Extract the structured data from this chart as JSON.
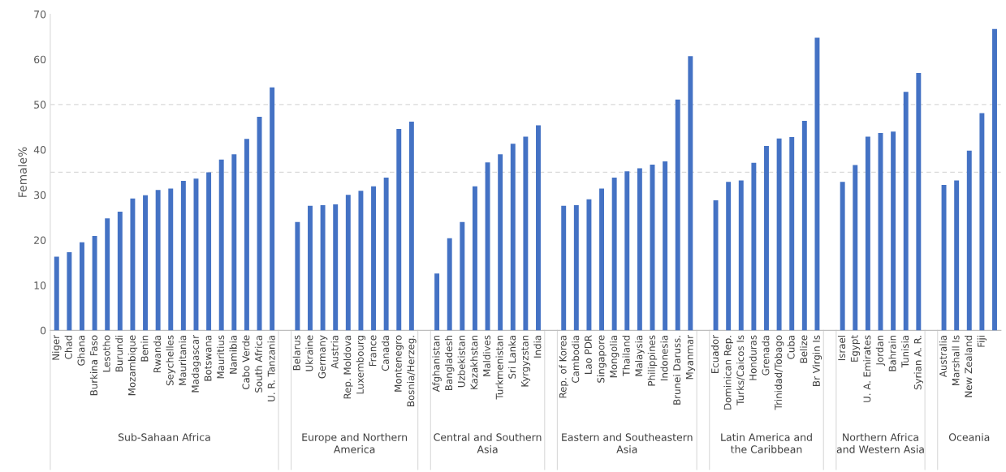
{
  "chart_data": {
    "type": "bar",
    "ylabel": "Female%",
    "categories": [
      "Niger",
      "Chad",
      "Ghana",
      "Burkina Faso",
      "Lesotho",
      "Burundi",
      "Mozambique",
      "Benin",
      "Rwanda",
      "Seychelles",
      "Mauritania",
      "Madagascar",
      "Botswana",
      "Mauritius",
      "Namibia",
      "Cabo Verde",
      "South Africa",
      "U. R. Tanzania",
      null,
      "Belarus",
      "Ukraine",
      "Germany",
      "Austria",
      "Rep. Moldova",
      "Luxembourg",
      "France",
      "Canada",
      "Montenegro",
      "Bosnia/Herzeg.",
      null,
      "Afghanistan",
      "Bangladesh",
      "Uzbekistan",
      "Kazakhstan",
      "Maldives",
      "Turkmenistan",
      "Sri Lanka",
      "Kyrgyzstan",
      "India",
      null,
      "Rep. of Korea",
      "Cambodia",
      "Lao PDR",
      "Singapore",
      "Mongolia",
      "Thailand",
      "Malaysia",
      "Philippines",
      "Indonesia",
      "Brunei Daruss.",
      "Myanmar",
      null,
      "Ecuador",
      "Dominican Rep.",
      "Turks/Caicos Is",
      "Honduras",
      "Grenada",
      "Trinidad/Tobago",
      "Cuba",
      "Belize",
      "Br Virgin Is",
      null,
      "Israel",
      "Egypt",
      "U. A. Emirates",
      "Jordan",
      "Bahrain",
      "Tunisia",
      "Syrian A. R.",
      null,
      "Australia",
      "Marshall Is",
      "New Zealand",
      "Fiji",
      null
    ],
    "values": [
      16.3,
      17.3,
      19.5,
      20.9,
      24.8,
      26.3,
      29.2,
      29.9,
      31.1,
      31.4,
      33.1,
      33.6,
      35.0,
      37.8,
      39.0,
      42.4,
      47.3,
      53.8,
      null,
      24.0,
      27.6,
      27.7,
      27.9,
      30.0,
      30.9,
      31.9,
      33.8,
      44.6,
      46.2,
      null,
      12.6,
      20.4,
      24.0,
      31.9,
      37.2,
      39.0,
      41.3,
      42.9,
      45.4,
      null,
      27.6,
      27.7,
      29.0,
      31.4,
      33.8,
      35.2,
      35.9,
      36.7,
      37.4,
      51.1,
      60.7,
      null,
      28.8,
      32.9,
      33.2,
      37.1,
      40.8,
      42.5,
      42.8,
      46.4,
      64.8,
      null,
      32.9,
      36.6,
      42.9,
      43.7,
      44.0,
      52.8,
      57.0,
      null,
      32.2,
      33.2,
      39.8,
      48.1,
      66.7
    ],
    "color": "#4472c4",
    "ylim": [
      0,
      70
    ],
    "yticks": [
      0,
      10,
      20,
      30,
      40,
      50,
      60,
      70
    ],
    "grid": false,
    "ref_lines": [
      {
        "axis": "y",
        "value": 35,
        "color": "#d9d9d9",
        "line_style": "dashed"
      },
      {
        "axis": "y",
        "value": 50,
        "color": "#d9d9d9",
        "line_style": "dashed"
      }
    ],
    "annotations": [
      "Sub-Sahaan Africa",
      "Europe and Northern America",
      "Central and Southern Asia",
      "Eastern and Southeastern Asia",
      "Latin America and the Caribbean",
      "Northern Africa and Western Asia",
      "Oceania"
    ]
  }
}
